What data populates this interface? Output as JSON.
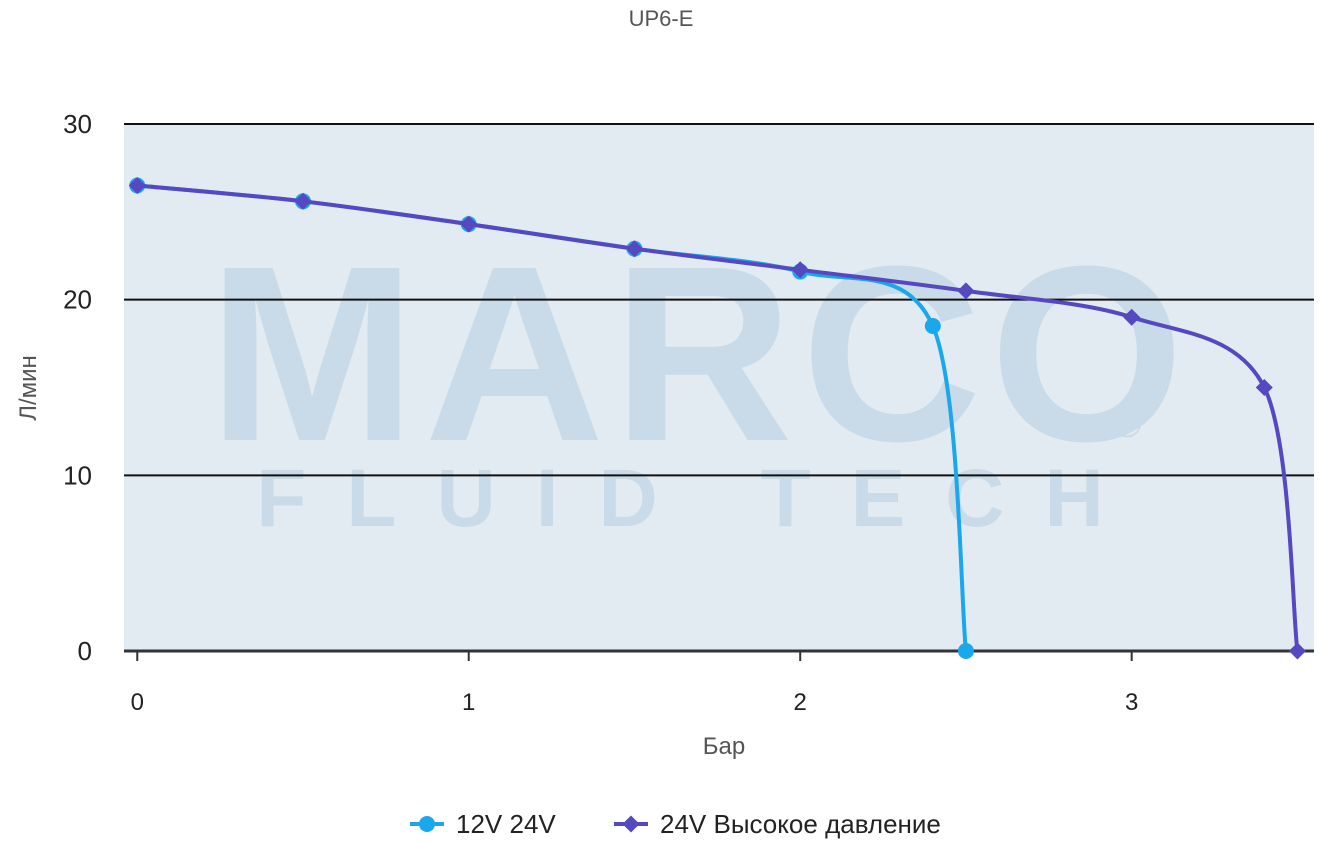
{
  "chart_data": {
    "type": "line",
    "title": "UP6-E",
    "xlabel": "Бар",
    "ylabel": "Л/мин",
    "xlim": [
      -0.04,
      3.55
    ],
    "ylim": [
      0,
      30
    ],
    "x_ticks": [
      0,
      1,
      2,
      3
    ],
    "y_ticks": [
      0,
      10,
      20,
      30
    ],
    "grid": "horizontal",
    "legend_position": "bottom-center",
    "watermark": {
      "word": "MARCO",
      "subword": "FLUID TECH",
      "mark": "®"
    },
    "series": [
      {
        "name": "12V 24V",
        "marker": "circle",
        "color": "#1aa7ec",
        "x": [
          0,
          0.5,
          1,
          1.5,
          2,
          2.4,
          2.5
        ],
        "y": [
          26.5,
          25.6,
          24.3,
          22.9,
          21.6,
          18.5,
          0
        ]
      },
      {
        "name": "24V Высокое давление",
        "marker": "diamond",
        "color": "#5548c0",
        "x": [
          0,
          0.5,
          1,
          1.5,
          2,
          2.5,
          3,
          3.4,
          3.5
        ],
        "y": [
          26.5,
          25.6,
          24.3,
          22.9,
          21.7,
          20.5,
          19.0,
          15.0,
          0
        ]
      }
    ]
  }
}
